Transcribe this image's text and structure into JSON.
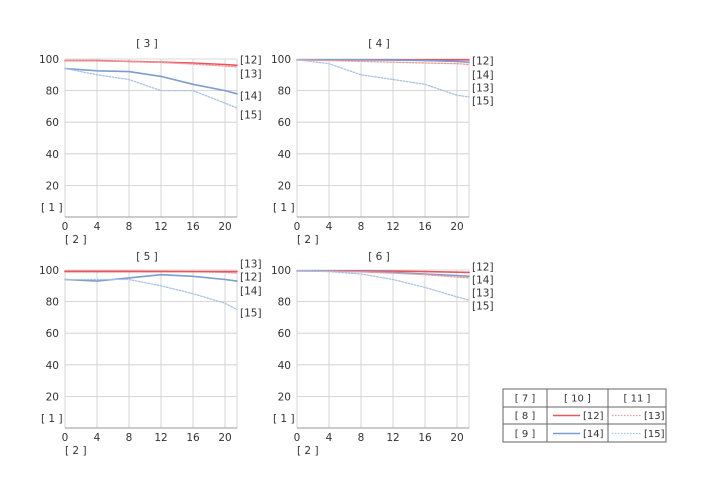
{
  "chart_data": [
    {
      "type": "line",
      "title": "[ 3 ]",
      "xlabel": "[ 2 ]",
      "ylabel": "[ 1 ]",
      "xlim": [
        0,
        21.5
      ],
      "ylim": [
        0,
        100
      ],
      "x_ticks": [
        "0",
        "4",
        "8",
        "12",
        "16",
        "20"
      ],
      "y_ticks": [
        "20",
        "40",
        "60",
        "80",
        "100"
      ],
      "series": [
        {
          "name": "[12]",
          "style": "solid",
          "color": "#e8555e",
          "x": [
            0,
            4,
            8,
            12,
            16,
            20,
            21.5
          ],
          "y": [
            99,
            99,
            98.5,
            98,
            97.5,
            96.5,
            96
          ]
        },
        {
          "name": "[13]",
          "style": "dotted",
          "color": "#ef9a9a",
          "x": [
            0,
            4,
            8,
            12,
            16,
            20,
            21.5
          ],
          "y": [
            99,
            98.8,
            98.4,
            97.8,
            96.8,
            95.5,
            95
          ]
        },
        {
          "name": "[14]",
          "style": "solid",
          "color": "#7b9dcf",
          "x": [
            0,
            4,
            8,
            12,
            16,
            20,
            21.5
          ],
          "y": [
            94,
            92.5,
            92,
            89,
            84,
            80,
            78
          ]
        },
        {
          "name": "[15]",
          "style": "dotted",
          "color": "#aac2e8",
          "x": [
            0,
            4,
            8,
            12,
            16,
            20,
            21.5
          ],
          "y": [
            94,
            90,
            87,
            80,
            80,
            72,
            69
          ]
        }
      ],
      "line_labels": [
        "[12]",
        "[13]",
        "[14]",
        "[15]"
      ]
    },
    {
      "type": "line",
      "title": "[ 4 ]",
      "xlabel": "[ 2 ]",
      "ylabel": "[ 1 ]",
      "xlim": [
        0,
        21.5
      ],
      "ylim": [
        0,
        100
      ],
      "x_ticks": [
        "0",
        "4",
        "8",
        "12",
        "16",
        "20"
      ],
      "y_ticks": [
        "20",
        "40",
        "60",
        "80",
        "100"
      ],
      "series": [
        {
          "name": "[12]",
          "style": "solid",
          "color": "#e8555e",
          "x": [
            0,
            4,
            8,
            12,
            16,
            20,
            21.5
          ],
          "y": [
            99.5,
            99.5,
            99.5,
            99.5,
            99.5,
            99.5,
            99.5
          ]
        },
        {
          "name": "[14]",
          "style": "solid",
          "color": "#7b9dcf",
          "x": [
            0,
            4,
            8,
            12,
            16,
            20,
            21.5
          ],
          "y": [
            99.5,
            99.5,
            99.5,
            99.3,
            99,
            98.5,
            98
          ]
        },
        {
          "name": "[13]",
          "style": "dotted",
          "color": "#ef9a9a",
          "x": [
            0,
            4,
            8,
            12,
            16,
            20,
            21.5
          ],
          "y": [
            99.5,
            99,
            98.5,
            98,
            97.5,
            97,
            96.5
          ]
        },
        {
          "name": "[15]",
          "style": "dotted",
          "color": "#aac2e8",
          "x": [
            0,
            4,
            8,
            12,
            16,
            20,
            21.5
          ],
          "y": [
            99.5,
            97,
            90,
            87,
            84,
            77,
            76
          ]
        }
      ],
      "line_labels": [
        "[12]",
        "[14]",
        "[13]",
        "[15]"
      ]
    },
    {
      "type": "line",
      "title": "[ 5 ]",
      "xlabel": "[ 2 ]",
      "ylabel": "[ 1 ]",
      "xlim": [
        0,
        21.5
      ],
      "ylim": [
        0,
        100
      ],
      "x_ticks": [
        "0",
        "4",
        "8",
        "12",
        "16",
        "20"
      ],
      "y_ticks": [
        "20",
        "40",
        "60",
        "80",
        "100"
      ],
      "series": [
        {
          "name": "[13]",
          "style": "dotted",
          "color": "#ef9a9a",
          "x": [
            0,
            4,
            8,
            12,
            16,
            20,
            21.5
          ],
          "y": [
            99.5,
            99.5,
            99.5,
            99.3,
            99,
            98.5,
            98
          ]
        },
        {
          "name": "[12]",
          "style": "solid",
          "color": "#e8555e",
          "x": [
            0,
            4,
            8,
            12,
            16,
            20,
            21.5
          ],
          "y": [
            99,
            99,
            99,
            99,
            99,
            99,
            99
          ]
        },
        {
          "name": "[14]",
          "style": "solid",
          "color": "#7b9dcf",
          "x": [
            0,
            4,
            8,
            12,
            16,
            20,
            21.5
          ],
          "y": [
            94,
            93,
            95,
            97,
            96,
            94,
            93
          ]
        },
        {
          "name": "[15]",
          "style": "dotted",
          "color": "#aac2e8",
          "x": [
            0,
            4,
            8,
            12,
            16,
            20,
            21.5
          ],
          "y": [
            94,
            94,
            94,
            90,
            85,
            79,
            75
          ]
        }
      ],
      "line_labels": [
        "[13]",
        "[12]",
        "[14]",
        "[15]"
      ]
    },
    {
      "type": "line",
      "title": "[ 6 ]",
      "xlabel": "[ 2 ]",
      "ylabel": "[ 1 ]",
      "xlim": [
        0,
        21.5
      ],
      "ylim": [
        0,
        100
      ],
      "x_ticks": [
        "0",
        "4",
        "8",
        "12",
        "16",
        "20"
      ],
      "y_ticks": [
        "20",
        "40",
        "60",
        "80",
        "100"
      ],
      "series": [
        {
          "name": "[12]",
          "style": "solid",
          "color": "#e8555e",
          "x": [
            0,
            4,
            8,
            12,
            16,
            20,
            21.5
          ],
          "y": [
            99.5,
            99.5,
            99.5,
            99.3,
            99,
            98.6,
            98.5
          ]
        },
        {
          "name": "[14]",
          "style": "solid",
          "color": "#7b9dcf",
          "x": [
            0,
            4,
            8,
            12,
            16,
            20,
            21.5
          ],
          "y": [
            99.5,
            99.3,
            99,
            98.5,
            97.5,
            96.5,
            96
          ]
        },
        {
          "name": "[13]",
          "style": "dotted",
          "color": "#ef9a9a",
          "x": [
            0,
            4,
            8,
            12,
            16,
            20,
            21.5
          ],
          "y": [
            99.5,
            99.3,
            98.8,
            98,
            97,
            95.5,
            95
          ]
        },
        {
          "name": "[15]",
          "style": "dotted",
          "color": "#aac2e8",
          "x": [
            0,
            4,
            8,
            12,
            16,
            20,
            21.5
          ],
          "y": [
            99.5,
            99,
            97.5,
            94,
            89,
            83,
            81
          ]
        }
      ],
      "line_labels": [
        "[12]",
        "[14]",
        "[13]",
        "[15]"
      ]
    }
  ],
  "legend": {
    "headers": [
      "[ 7 ]",
      "[ 10 ]",
      "[ 11 ]"
    ],
    "rows": [
      {
        "label": "[ 8 ]",
        "solid": "[12]",
        "dotted": "[13]",
        "color": "#e8555e",
        "dotted_color": "#ef9a9a"
      },
      {
        "label": "[ 9 ]",
        "solid": "[14]",
        "dotted": "[15]",
        "color": "#7b9dcf",
        "dotted_color": "#aac2e8"
      }
    ]
  },
  "colors": {
    "grid": "#cccccc",
    "axis": "#999999",
    "text": "#333333"
  }
}
